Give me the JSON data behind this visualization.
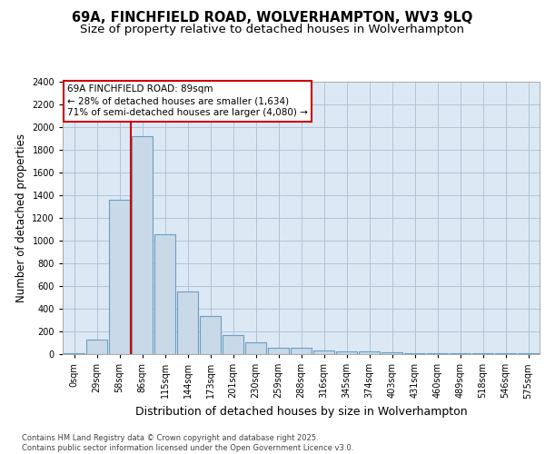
{
  "title_line1": "69A, FINCHFIELD ROAD, WOLVERHAMPTON, WV3 9LQ",
  "title_line2": "Size of property relative to detached houses in Wolverhampton",
  "xlabel": "Distribution of detached houses by size in Wolverhampton",
  "ylabel": "Number of detached properties",
  "footer_line1": "Contains HM Land Registry data © Crown copyright and database right 2025.",
  "footer_line2": "Contains public sector information licensed under the Open Government Licence v3.0.",
  "bin_labels": [
    "0sqm",
    "29sqm",
    "58sqm",
    "86sqm",
    "115sqm",
    "144sqm",
    "173sqm",
    "201sqm",
    "230sqm",
    "259sqm",
    "288sqm",
    "316sqm",
    "345sqm",
    "374sqm",
    "403sqm",
    "431sqm",
    "460sqm",
    "489sqm",
    "518sqm",
    "546sqm",
    "575sqm"
  ],
  "bar_values": [
    10,
    125,
    1360,
    1920,
    1060,
    555,
    335,
    170,
    105,
    60,
    60,
    35,
    25,
    25,
    15,
    10,
    10,
    5,
    5,
    5,
    5
  ],
  "bar_color": "#c9d9e8",
  "bar_edgecolor": "#6a9fc0",
  "bar_linewidth": 0.8,
  "grid_color": "#b0c4d8",
  "axes_background": "#dce9f5",
  "annotation_text": "69A FINCHFIELD ROAD: 89sqm\n← 28% of detached houses are smaller (1,634)\n71% of semi-detached houses are larger (4,080) →",
  "redline_bin_index": 3,
  "ylim": [
    0,
    2400
  ],
  "yticks": [
    0,
    200,
    400,
    600,
    800,
    1000,
    1200,
    1400,
    1600,
    1800,
    2000,
    2200,
    2400
  ],
  "annotation_box_color": "#cc0000",
  "redline_color": "#cc0000",
  "title_fontsize": 10.5,
  "subtitle_fontsize": 9.5,
  "axis_label_fontsize": 8.5,
  "tick_fontsize": 7,
  "annotation_fontsize": 7.5,
  "footer_fontsize": 6
}
